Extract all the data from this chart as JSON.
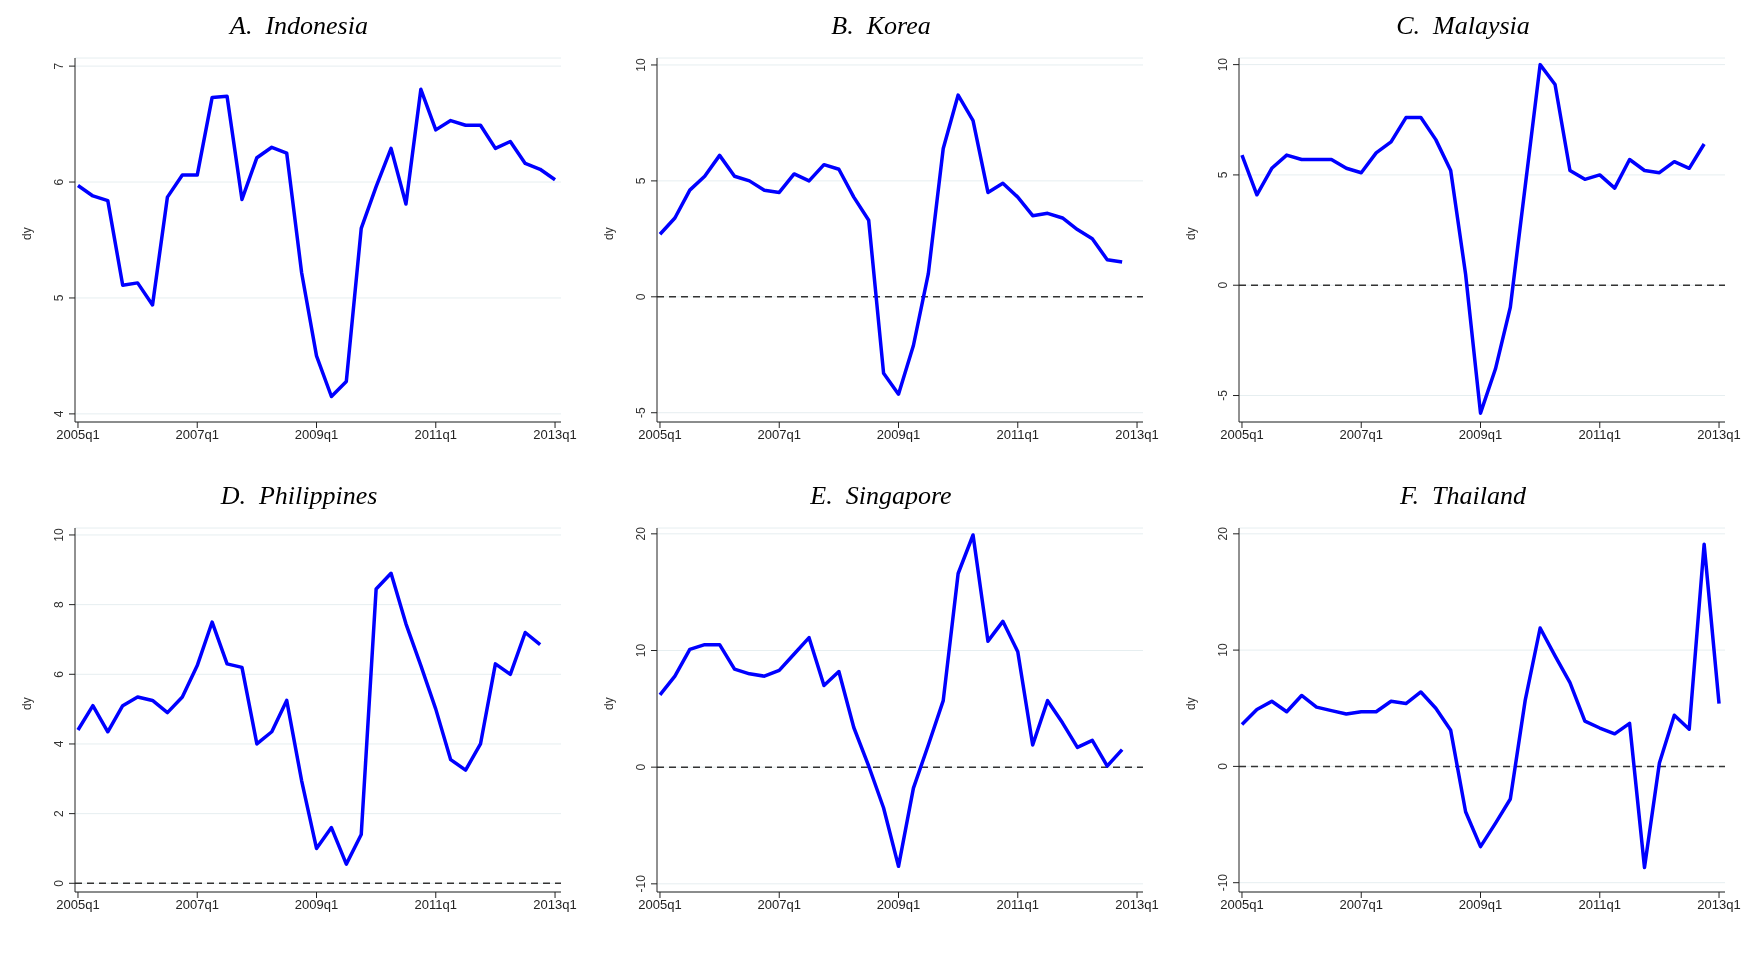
{
  "chart_data": [
    {
      "type": "line",
      "title": "A.  Indonesia",
      "ylabel": "dy",
      "grid": "y",
      "marker": "none",
      "line_style": "solid",
      "ylim": [
        3.93,
        7.07
      ],
      "yticks": [
        4,
        5,
        6,
        7
      ],
      "categories": [
        "2005q1",
        null,
        null,
        null,
        null,
        null,
        null,
        null,
        "2007q1",
        null,
        null,
        null,
        null,
        null,
        null,
        null,
        "2009q1",
        null,
        null,
        null,
        null,
        null,
        null,
        null,
        "2011q1",
        null,
        null,
        null,
        null,
        null,
        null,
        null,
        "2013q1"
      ],
      "series": [
        {
          "color": "#0000ff",
          "values": [
            5.97,
            5.88,
            5.84,
            5.11,
            5.13,
            4.94,
            5.87,
            6.06,
            6.06,
            6.73,
            6.74,
            5.85,
            6.21,
            6.3,
            6.25,
            5.22,
            4.5,
            4.15,
            4.28,
            5.6,
            5.96,
            6.29,
            5.81,
            6.8,
            6.45,
            6.53,
            6.49,
            6.49,
            6.29,
            6.35,
            6.16,
            6.11,
            6.02
          ]
        }
      ]
    },
    {
      "type": "line",
      "title": "B.  Korea",
      "ylabel": "dy",
      "grid": "y",
      "marker": "none",
      "line_style": "solid",
      "ylim": [
        -5.4,
        10.3
      ],
      "yticks": [
        -5,
        0,
        5,
        10
      ],
      "ref_lines": [
        {
          "axis": "y",
          "value": 0,
          "color": "#333333",
          "line_style": "dashed"
        }
      ],
      "categories": [
        "2005q1",
        null,
        null,
        null,
        null,
        null,
        null,
        null,
        "2007q1",
        null,
        null,
        null,
        null,
        null,
        null,
        null,
        "2009q1",
        null,
        null,
        null,
        null,
        null,
        null,
        null,
        "2011q1",
        null,
        null,
        null,
        null,
        null,
        null,
        null,
        "2013q1"
      ],
      "series": [
        {
          "color": "#0000ff",
          "values": [
            2.7,
            3.4,
            4.6,
            5.2,
            6.1,
            5.2,
            5.0,
            4.6,
            4.5,
            5.3,
            5.0,
            5.7,
            5.5,
            4.3,
            3.3,
            -3.3,
            -4.2,
            -2.1,
            1.0,
            6.4,
            8.7,
            7.6,
            4.5,
            4.9,
            4.3,
            3.5,
            3.6,
            3.4,
            2.9,
            2.5,
            1.6,
            1.5,
            null
          ]
        }
      ]
    },
    {
      "type": "line",
      "title": "C.  Malaysia",
      "ylabel": "dy",
      "grid": "y",
      "marker": "none",
      "line_style": "solid",
      "ylim": [
        -6.2,
        10.3
      ],
      "yticks": [
        -5,
        0,
        5,
        10
      ],
      "ref_lines": [
        {
          "axis": "y",
          "value": 0,
          "color": "#333333",
          "line_style": "dashed"
        }
      ],
      "categories": [
        "2005q1",
        null,
        null,
        null,
        null,
        null,
        null,
        null,
        "2007q1",
        null,
        null,
        null,
        null,
        null,
        null,
        null,
        "2009q1",
        null,
        null,
        null,
        null,
        null,
        null,
        null,
        "2011q1",
        null,
        null,
        null,
        null,
        null,
        null,
        null,
        "2013q1"
      ],
      "series": [
        {
          "color": "#0000ff",
          "values": [
            5.9,
            4.1,
            5.3,
            5.9,
            5.7,
            5.7,
            5.7,
            5.3,
            5.1,
            6.0,
            6.5,
            7.6,
            7.6,
            6.6,
            5.2,
            0.5,
            -5.8,
            -3.8,
            -1.0,
            4.5,
            10.0,
            9.1,
            5.2,
            4.8,
            5.0,
            4.4,
            5.7,
            5.2,
            5.1,
            5.6,
            5.3,
            6.4,
            null
          ]
        }
      ]
    },
    {
      "type": "line",
      "title": "D.  Philippines",
      "ylabel": "dy",
      "grid": "y",
      "marker": "none",
      "line_style": "solid",
      "ylim": [
        -0.25,
        10.2
      ],
      "yticks": [
        0,
        2,
        4,
        6,
        8,
        10
      ],
      "ref_lines": [
        {
          "axis": "y",
          "value": 0,
          "color": "#333333",
          "line_style": "dashed"
        }
      ],
      "categories": [
        "2005q1",
        null,
        null,
        null,
        null,
        null,
        null,
        null,
        "2007q1",
        null,
        null,
        null,
        null,
        null,
        null,
        null,
        "2009q1",
        null,
        null,
        null,
        null,
        null,
        null,
        null,
        "2011q1",
        null,
        null,
        null,
        null,
        null,
        null,
        null,
        "2013q1"
      ],
      "series": [
        {
          "color": "#0000ff",
          "values": [
            4.4,
            5.1,
            4.35,
            5.1,
            5.35,
            5.25,
            4.9,
            5.35,
            6.25,
            7.5,
            6.3,
            6.2,
            4.0,
            4.35,
            5.25,
            2.95,
            1.0,
            1.6,
            0.55,
            1.4,
            8.45,
            8.9,
            7.45,
            6.25,
            5.0,
            3.55,
            3.25,
            4.0,
            6.3,
            6.0,
            7.2,
            6.85,
            null
          ]
        }
      ]
    },
    {
      "type": "line",
      "title": "E.  Singapore",
      "ylabel": "dy",
      "grid": "y",
      "marker": "none",
      "line_style": "solid",
      "ylim": [
        -10.7,
        20.5
      ],
      "yticks": [
        -10,
        0,
        10,
        20
      ],
      "ref_lines": [
        {
          "axis": "y",
          "value": 0,
          "color": "#333333",
          "line_style": "dashed"
        }
      ],
      "categories": [
        "2005q1",
        null,
        null,
        null,
        null,
        null,
        null,
        null,
        "2007q1",
        null,
        null,
        null,
        null,
        null,
        null,
        null,
        "2009q1",
        null,
        null,
        null,
        null,
        null,
        null,
        null,
        "2011q1",
        null,
        null,
        null,
        null,
        null,
        null,
        null,
        "2013q1"
      ],
      "series": [
        {
          "color": "#0000ff",
          "values": [
            6.2,
            7.8,
            10.1,
            10.5,
            10.5,
            8.4,
            8.0,
            7.8,
            8.3,
            9.7,
            11.1,
            7.0,
            8.2,
            3.4,
            0.1,
            -3.5,
            -8.5,
            -1.8,
            1.9,
            5.7,
            16.6,
            19.9,
            10.8,
            12.5,
            9.9,
            1.9,
            5.7,
            3.8,
            1.7,
            2.3,
            0.1,
            1.5,
            null
          ]
        }
      ]
    },
    {
      "type": "line",
      "title": "F.  Thailand",
      "ylabel": "dy",
      "grid": "y",
      "marker": "none",
      "line_style": "solid",
      "ylim": [
        -10.8,
        20.5
      ],
      "yticks": [
        -10,
        0,
        10,
        20
      ],
      "ref_lines": [
        {
          "axis": "y",
          "value": 0,
          "color": "#333333",
          "line_style": "dashed"
        }
      ],
      "categories": [
        "2005q1",
        null,
        null,
        null,
        null,
        null,
        null,
        null,
        "2007q1",
        null,
        null,
        null,
        null,
        null,
        null,
        null,
        "2009q1",
        null,
        null,
        null,
        null,
        null,
        null,
        null,
        "2011q1",
        null,
        null,
        null,
        null,
        null,
        null,
        null,
        "2013q1"
      ],
      "series": [
        {
          "color": "#0000ff",
          "values": [
            3.6,
            4.9,
            5.6,
            4.7,
            6.1,
            5.1,
            4.8,
            4.5,
            4.7,
            4.7,
            5.6,
            5.4,
            6.4,
            5.0,
            3.1,
            -3.9,
            -6.9,
            -4.9,
            -2.8,
            5.7,
            11.9,
            9.5,
            7.2,
            3.9,
            3.3,
            2.8,
            3.7,
            -8.7,
            0.3,
            4.4,
            3.2,
            19.1,
            5.4
          ]
        }
      ]
    }
  ]
}
